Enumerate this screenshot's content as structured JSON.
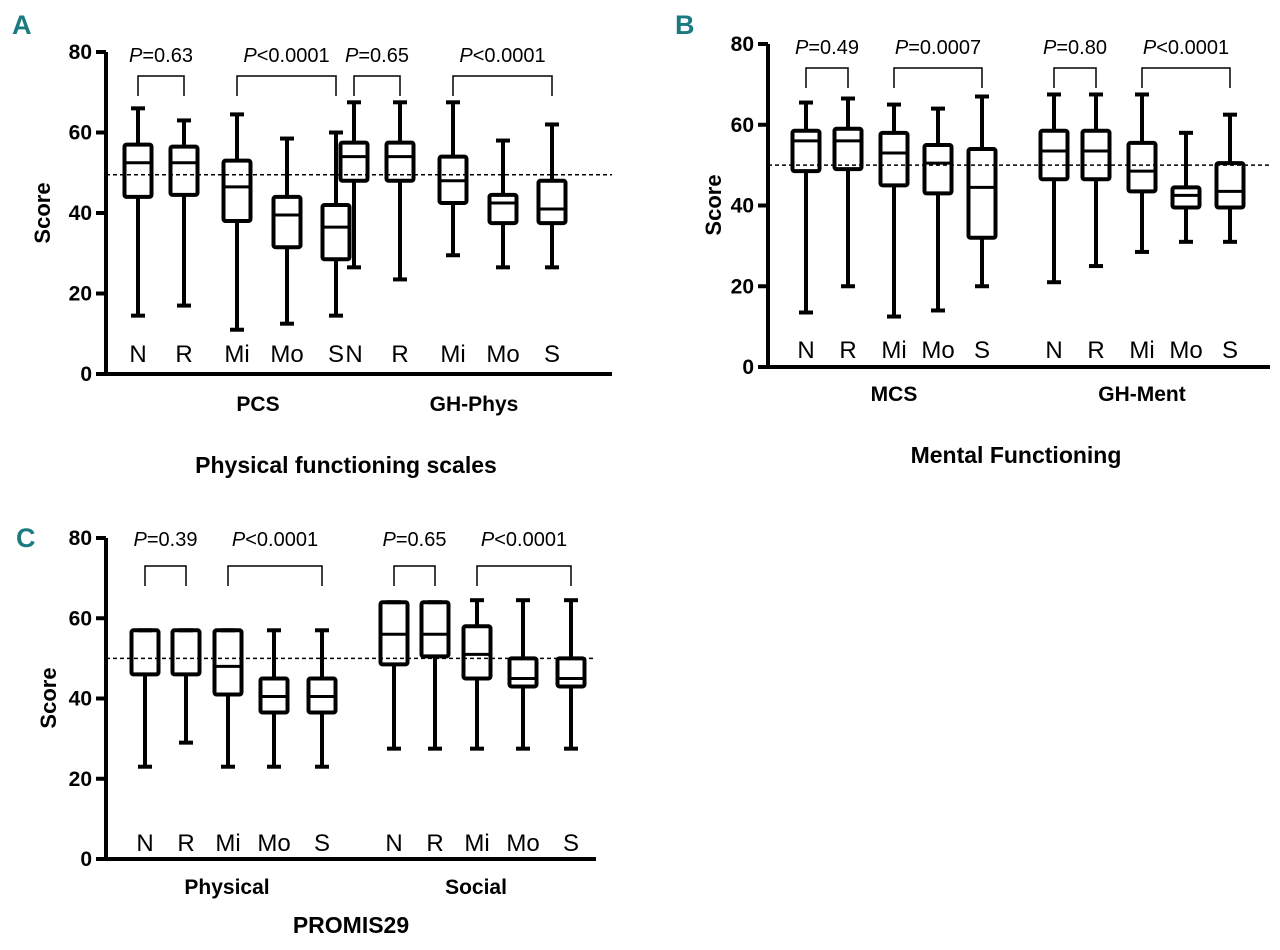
{
  "chart_data": [
    {
      "panel": "A",
      "type": "box",
      "ylabel": "Score",
      "xlabel": "Physical functioning scales",
      "ylim": [
        0,
        80
      ],
      "yticks": [
        "0",
        "20",
        "40",
        "60",
        "80"
      ],
      "reference_line": 49.5,
      "groups": [
        {
          "name": "PCS",
          "categories": [
            "N",
            "R",
            "Mi",
            "Mo",
            "S"
          ],
          "boxes": [
            {
              "min": 14.5,
              "q1": 44,
              "median": 52.5,
              "q3": 57,
              "max": 66
            },
            {
              "min": 17,
              "q1": 44.5,
              "median": 52.5,
              "q3": 56.5,
              "max": 63
            },
            {
              "min": 11,
              "q1": 38,
              "median": 46.5,
              "q3": 53,
              "max": 64.5
            },
            {
              "min": 12.5,
              "q1": 31.5,
              "median": 39.5,
              "q3": 44,
              "max": 58.5
            },
            {
              "min": 14.5,
              "q1": 28.5,
              "median": 36.5,
              "q3": 42,
              "max": 60
            }
          ],
          "pvalues": [
            {
              "italic": "P",
              "text": "=0.63",
              "from": 0,
              "to": 1
            },
            {
              "italic": "P",
              "text": "<0.0001",
              "from": 2,
              "to": 4
            }
          ]
        },
        {
          "name": "GH-Phys",
          "categories": [
            "N",
            "R",
            "Mi",
            "Mo",
            "S"
          ],
          "boxes": [
            {
              "min": 26.5,
              "q1": 48,
              "median": 54,
              "q3": 57.5,
              "max": 67.5
            },
            {
              "min": 23.5,
              "q1": 48,
              "median": 54,
              "q3": 57.5,
              "max": 67.5
            },
            {
              "min": 29.5,
              "q1": 42.5,
              "median": 48,
              "q3": 54,
              "max": 67.5
            },
            {
              "min": 26.5,
              "q1": 37.5,
              "median": 42.5,
              "q3": 44.5,
              "max": 58
            },
            {
              "min": 26.5,
              "q1": 37.5,
              "median": 41,
              "q3": 48,
              "max": 62
            }
          ],
          "pvalues": [
            {
              "italic": "P",
              "text": "=0.65",
              "from": 0,
              "to": 1
            },
            {
              "italic": "P",
              "text": "<0.0001",
              "from": 2,
              "to": 4
            }
          ]
        }
      ]
    },
    {
      "panel": "B",
      "type": "box",
      "ylabel": "Score",
      "xlabel": "Mental Functioning",
      "ylim": [
        0,
        80
      ],
      "yticks": [
        "0",
        "20",
        "40",
        "60",
        "80"
      ],
      "reference_line": 50,
      "groups": [
        {
          "name": "MCS",
          "categories": [
            "N",
            "R",
            "Mi",
            "Mo",
            "S"
          ],
          "boxes": [
            {
              "min": 13.5,
              "q1": 48.5,
              "median": 56,
              "q3": 58.5,
              "max": 65.5
            },
            {
              "min": 20,
              "q1": 49,
              "median": 56,
              "q3": 59,
              "max": 66.5
            },
            {
              "min": 12.5,
              "q1": 45,
              "median": 53,
              "q3": 58,
              "max": 65
            },
            {
              "min": 14,
              "q1": 43,
              "median": 50.5,
              "q3": 55,
              "max": 64
            },
            {
              "min": 20,
              "q1": 32,
              "median": 44.5,
              "q3": 54,
              "max": 67
            }
          ],
          "pvalues": [
            {
              "italic": "P",
              "text": "=0.49",
              "from": 0,
              "to": 1
            },
            {
              "italic": "P",
              "text": "=0.0007",
              "from": 2,
              "to": 4
            }
          ]
        },
        {
          "name": "GH-Ment",
          "categories": [
            "N",
            "R",
            "Mi",
            "Mo",
            "S"
          ],
          "boxes": [
            {
              "min": 21,
              "q1": 46.5,
              "median": 53.5,
              "q3": 58.5,
              "max": 67.5
            },
            {
              "min": 25,
              "q1": 46.5,
              "median": 53.5,
              "q3": 58.5,
              "max": 67.5
            },
            {
              "min": 28.5,
              "q1": 43.5,
              "median": 48.5,
              "q3": 55.5,
              "max": 67.5
            },
            {
              "min": 31,
              "q1": 39.5,
              "median": 42.5,
              "q3": 44.5,
              "max": 58
            },
            {
              "min": 31,
              "q1": 39.5,
              "median": 43.5,
              "q3": 50.5,
              "max": 62.5
            }
          ],
          "pvalues": [
            {
              "italic": "P",
              "text": "=0.80",
              "from": 0,
              "to": 1
            },
            {
              "italic": "P",
              "text": "<0.0001",
              "from": 2,
              "to": 4
            }
          ]
        }
      ]
    },
    {
      "panel": "C",
      "type": "box",
      "ylabel": "Score",
      "xlabel": "PROMIS29",
      "ylim": [
        0,
        80
      ],
      "yticks": [
        "0",
        "20",
        "40",
        "60",
        "80"
      ],
      "reference_line": 50,
      "groups": [
        {
          "name": "Physical",
          "categories": [
            "N",
            "R",
            "Mi",
            "Mo",
            "S"
          ],
          "boxes": [
            {
              "min": 23,
              "q1": 46,
              "median": 57,
              "q3": 57,
              "max": 57
            },
            {
              "min": 29,
              "q1": 46,
              "median": 57,
              "q3": 57,
              "max": 57
            },
            {
              "min": 23,
              "q1": 41,
              "median": 48,
              "q3": 57,
              "max": 57
            },
            {
              "min": 23,
              "q1": 36.5,
              "median": 40.5,
              "q3": 45,
              "max": 57
            },
            {
              "min": 23,
              "q1": 36.5,
              "median": 40.5,
              "q3": 45,
              "max": 57
            }
          ],
          "pvalues": [
            {
              "italic": "P",
              "text": "=0.39",
              "from": 0,
              "to": 1
            },
            {
              "italic": "P",
              "text": "<0.0001",
              "from": 2,
              "to": 4
            }
          ]
        },
        {
          "name": "Social",
          "categories": [
            "N",
            "R",
            "Mi",
            "Mo",
            "S"
          ],
          "boxes": [
            {
              "min": 27.5,
              "q1": 48.5,
              "median": 56,
              "q3": 64,
              "max": 64
            },
            {
              "min": 27.5,
              "q1": 50.5,
              "median": 56,
              "q3": 64,
              "max": 64
            },
            {
              "min": 27.5,
              "q1": 45,
              "median": 51,
              "q3": 58,
              "max": 64.5
            },
            {
              "min": 27.5,
              "q1": 43,
              "median": 45,
              "q3": 50,
              "max": 64.5
            },
            {
              "min": 27.5,
              "q1": 43,
              "median": 45,
              "q3": 50,
              "max": 64.5
            }
          ],
          "pvalues": [
            {
              "italic": "P",
              "text": "=0.65",
              "from": 0,
              "to": 1
            },
            {
              "italic": "P",
              "text": "<0.0001",
              "from": 2,
              "to": 4
            }
          ]
        }
      ]
    }
  ]
}
